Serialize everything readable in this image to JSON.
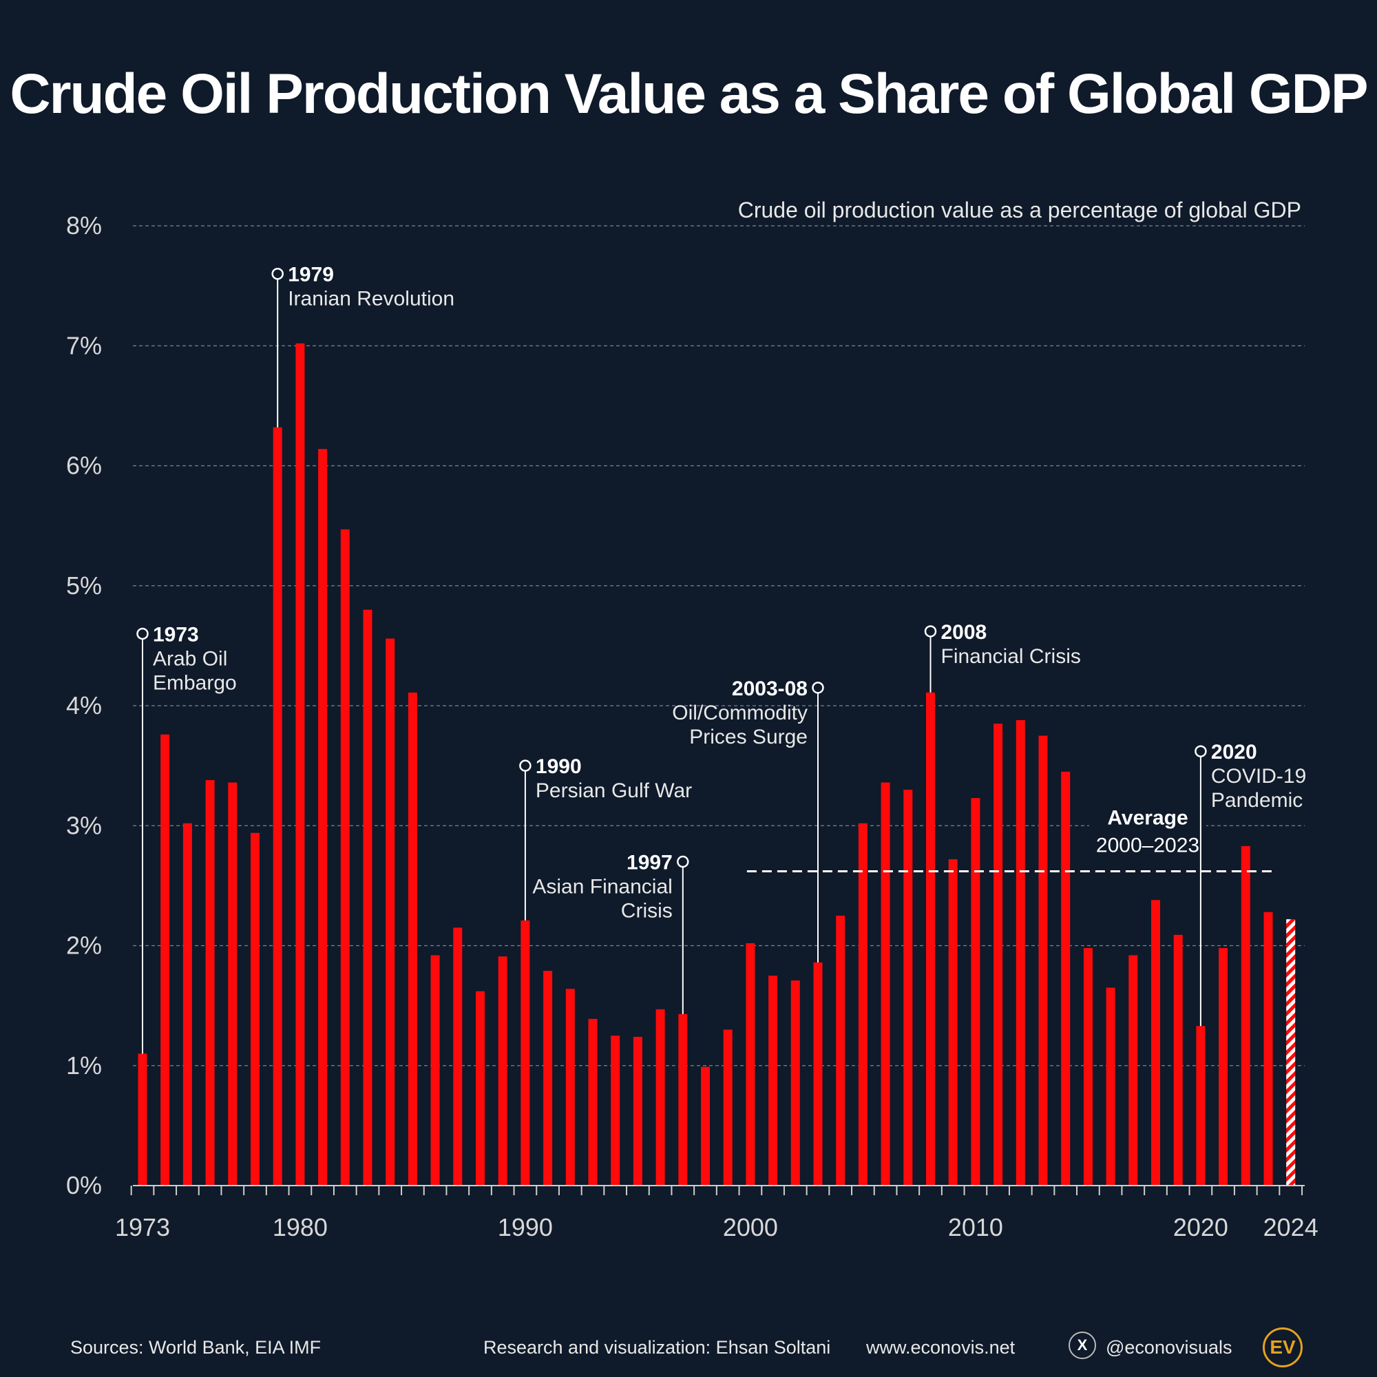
{
  "title": "Crude Oil Production Value as a Share of Global GDP",
  "chart_data": {
    "type": "bar",
    "title": "Crude Oil Production Value as a Share of Global GDP",
    "subtitle": "Crude oil production value as a percentage of global GDP",
    "ylabel": "",
    "xlabel": "",
    "ylim": [
      0,
      8
    ],
    "yticks": [
      "0%",
      "1%",
      "2%",
      "3%",
      "4%",
      "5%",
      "6%",
      "7%",
      "8%"
    ],
    "xtick_labels": [
      {
        "year": 1973,
        "label": "1973"
      },
      {
        "year": 1980,
        "label": "1980"
      },
      {
        "year": 1990,
        "label": "1990"
      },
      {
        "year": 2000,
        "label": "2000"
      },
      {
        "year": 2010,
        "label": "2010"
      },
      {
        "year": 2020,
        "label": "2020"
      },
      {
        "year": 2024,
        "label": "2024"
      }
    ],
    "years": [
      1973,
      1974,
      1975,
      1976,
      1977,
      1978,
      1979,
      1980,
      1981,
      1982,
      1983,
      1984,
      1985,
      1986,
      1987,
      1988,
      1989,
      1990,
      1991,
      1992,
      1993,
      1994,
      1995,
      1996,
      1997,
      1998,
      1999,
      2000,
      2001,
      2002,
      2003,
      2004,
      2005,
      2006,
      2007,
      2008,
      2009,
      2010,
      2011,
      2012,
      2013,
      2014,
      2015,
      2016,
      2017,
      2018,
      2019,
      2020,
      2021,
      2022,
      2023,
      2024
    ],
    "values": [
      1.1,
      3.76,
      3.02,
      3.38,
      3.36,
      2.94,
      6.32,
      7.02,
      6.14,
      5.47,
      4.8,
      4.56,
      4.11,
      1.92,
      2.15,
      1.62,
      1.91,
      2.21,
      1.79,
      1.64,
      1.39,
      1.25,
      1.24,
      1.47,
      1.43,
      0.99,
      1.3,
      2.02,
      1.75,
      1.71,
      1.86,
      2.25,
      3.02,
      3.36,
      3.3,
      4.11,
      2.72,
      3.23,
      3.85,
      3.88,
      3.75,
      3.45,
      1.98,
      1.65,
      1.92,
      2.38,
      2.09,
      1.33,
      1.98,
      2.83,
      2.28,
      2.22
    ],
    "estimated_years": [
      2024
    ],
    "average": {
      "label_line1": "Average",
      "label_line2": "2000–2023",
      "value": 2.62,
      "from_year": 2000,
      "to_year": 2023
    },
    "annotations": [
      {
        "year": 1973,
        "label_year": "1973",
        "text": [
          "Arab Oil",
          "Embargo"
        ],
        "side": "right"
      },
      {
        "year": 1979,
        "label_year": "1979",
        "text": [
          "Iranian Revolution"
        ],
        "side": "right"
      },
      {
        "year": 1990,
        "label_year": "1990",
        "text": [
          "Persian Gulf War"
        ],
        "side": "right"
      },
      {
        "year": 1997,
        "label_year": "1997",
        "text": [
          "Asian Financial",
          "Crisis"
        ],
        "side": "left"
      },
      {
        "year": 2003,
        "label_year": "2003-08",
        "text": [
          "Oil/Commodity",
          "Prices Surge"
        ],
        "side": "left"
      },
      {
        "year": 2008,
        "label_year": "2008",
        "text": [
          "Financial Crisis"
        ],
        "side": "right"
      },
      {
        "year": 2020,
        "label_year": "2020",
        "text": [
          "COVID-19",
          "Pandemic"
        ],
        "side": "right"
      }
    ]
  },
  "footer": {
    "sources": "Sources: World Bank, EIA IMF",
    "credit": "Research and visualization: Ehsan Soltani",
    "website": "www.econovis.net",
    "x_icon_glyph": "X",
    "handle": "@econovisuals",
    "logo_text": "EV"
  },
  "colors": {
    "background": "#0f1a2a",
    "bar": "#ff0a0a",
    "grid": "#7a8595",
    "text": "#e8e8e8"
  }
}
